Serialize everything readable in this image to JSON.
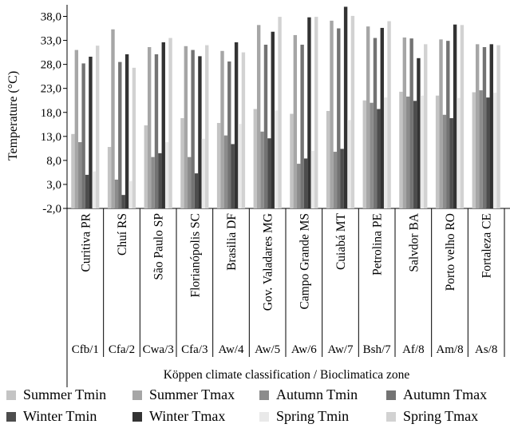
{
  "chart_data": {
    "type": "bar",
    "ylabel": "Temperature (°C)",
    "xlabel": "Köppen climate classification / Bioclimatica zone",
    "ylim": [
      -2.0,
      40.0
    ],
    "yticks": [
      "-2,0",
      "3,0",
      "8,0",
      "13,0",
      "18,0",
      "23,0",
      "28,0",
      "33,0",
      "38,0"
    ],
    "ytick_values": [
      -2,
      3,
      8,
      13,
      18,
      23,
      28,
      33,
      38
    ],
    "grid": false,
    "legend_position": "bottom",
    "categories": [
      "Curitiva PR",
      "Chuí  RS",
      "São Paulo  SP",
      "Florianópolis SC",
      "Brasilia DF",
      "Gov. Valadares MG",
      "Campo Grande MS",
      "Cuiabá MT",
      "Petrolina PE",
      "Salvdor BA",
      "Porto velho RO",
      "Fortaleza CE"
    ],
    "zones": [
      "Cfb/1",
      "Cfa/2",
      "Cwa/3",
      "Cfa/3",
      "Aw/4",
      "Aw/5",
      "Aw/6",
      "Aw/7",
      "Bsh/7",
      "Af/8",
      "Am/8",
      "As/8"
    ],
    "series": [
      {
        "name": "Summer Tmin",
        "color": "#c4c4c4",
        "values": [
          13.5,
          10.8,
          15.3,
          16.8,
          15.8,
          18.7,
          17.7,
          18.3,
          20.5,
          22.3,
          21.5,
          22.2
        ]
      },
      {
        "name": "Summer Tmax",
        "color": "#a6a6a6",
        "values": [
          31.0,
          35.3,
          31.6,
          31.8,
          30.8,
          36.2,
          34.1,
          37.1,
          35.9,
          33.6,
          33.2,
          32.2
        ]
      },
      {
        "name": "Autumn Tmin",
        "color": "#8c8c8c",
        "values": [
          11.8,
          4.0,
          8.7,
          8.7,
          13.2,
          14.0,
          7.3,
          9.8,
          20.0,
          21.3,
          17.5,
          22.6
        ]
      },
      {
        "name": "Autumn Tmax",
        "color": "#737373",
        "values": [
          28.2,
          28.5,
          30.1,
          31.0,
          28.6,
          32.1,
          32.1,
          35.5,
          33.5,
          33.4,
          32.9,
          31.6
        ]
      },
      {
        "name": "Winter Tmin",
        "color": "#4d4d4d",
        "values": [
          5.0,
          0.8,
          9.5,
          5.3,
          11.4,
          12.6,
          8.4,
          10.4,
          18.7,
          20.4,
          16.8,
          21.1
        ]
      },
      {
        "name": "Winter Tmax",
        "color": "#333333",
        "values": [
          29.6,
          30.1,
          32.6,
          29.7,
          32.6,
          34.8,
          37.8,
          40.0,
          35.6,
          29.3,
          36.3,
          32.2
        ]
      },
      {
        "name": "Spring Tmin",
        "color": "#e9e9e9",
        "values": [
          5.7,
          3.7,
          11.8,
          12.5,
          15.6,
          18.4,
          10.0,
          16.4,
          21.1,
          21.5,
          21.0,
          22.1
        ]
      },
      {
        "name": "Spring Tmax",
        "color": "#d2d2d2",
        "values": [
          31.9,
          27.3,
          33.5,
          32.0,
          30.5,
          37.9,
          37.9,
          38.1,
          37.0,
          32.2,
          36.2,
          32.0
        ]
      }
    ]
  }
}
